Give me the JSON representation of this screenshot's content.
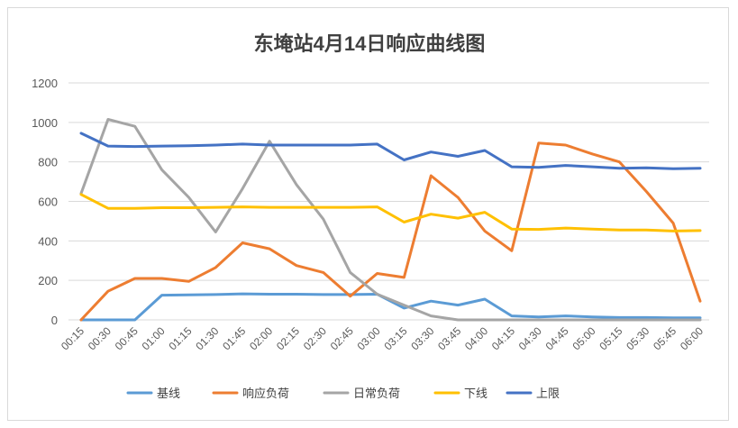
{
  "chart_data": {
    "type": "line",
    "title": "东埯站4月14日响应曲线图",
    "xlabel": "",
    "ylabel": "",
    "ylim": [
      0,
      1200
    ],
    "yticks": [
      0,
      200,
      400,
      600,
      800,
      1000,
      1200
    ],
    "grid": true,
    "legend_position": "bottom",
    "categories": [
      "00:15",
      "00:30",
      "00:45",
      "01:00",
      "01:15",
      "01:30",
      "01:45",
      "02:00",
      "02:15",
      "02:30",
      "02:45",
      "03:00",
      "03:15",
      "03:30",
      "03:45",
      "04:00",
      "04:15",
      "04:30",
      "04:45",
      "05:00",
      "05:15",
      "05:30",
      "05:45",
      "06:00"
    ],
    "series": [
      {
        "name": "基线",
        "color": "#5B9BD5",
        "values": [
          0,
          0,
          0,
          125,
          127,
          128,
          132,
          130,
          130,
          128,
          128,
          130,
          60,
          95,
          75,
          105,
          20,
          15,
          20,
          15,
          12,
          12,
          10,
          10
        ]
      },
      {
        "name": "响应负荷",
        "color": "#ED7D31",
        "values": [
          0,
          145,
          210,
          210,
          195,
          265,
          390,
          360,
          275,
          240,
          120,
          235,
          215,
          730,
          620,
          450,
          350,
          895,
          885,
          840,
          800,
          650,
          490,
          95
        ]
      },
      {
        "name": "日常负荷",
        "color": "#A5A5A5",
        "values": [
          640,
          1015,
          980,
          760,
          620,
          445,
          665,
          905,
          685,
          510,
          240,
          130,
          75,
          20,
          0,
          0,
          0,
          0,
          0,
          0,
          0,
          0,
          0,
          0
        ]
      },
      {
        "name": "下线",
        "color": "#FFC000",
        "values": [
          635,
          565,
          565,
          568,
          568,
          570,
          572,
          570,
          570,
          570,
          570,
          572,
          495,
          535,
          515,
          545,
          460,
          458,
          465,
          460,
          455,
          455,
          450,
          452
        ]
      },
      {
        "name": "上限",
        "color": "#4472C4",
        "values": [
          945,
          880,
          878,
          880,
          882,
          885,
          890,
          885,
          885,
          885,
          885,
          890,
          810,
          850,
          828,
          858,
          775,
          772,
          782,
          775,
          768,
          770,
          765,
          768
        ]
      }
    ]
  }
}
